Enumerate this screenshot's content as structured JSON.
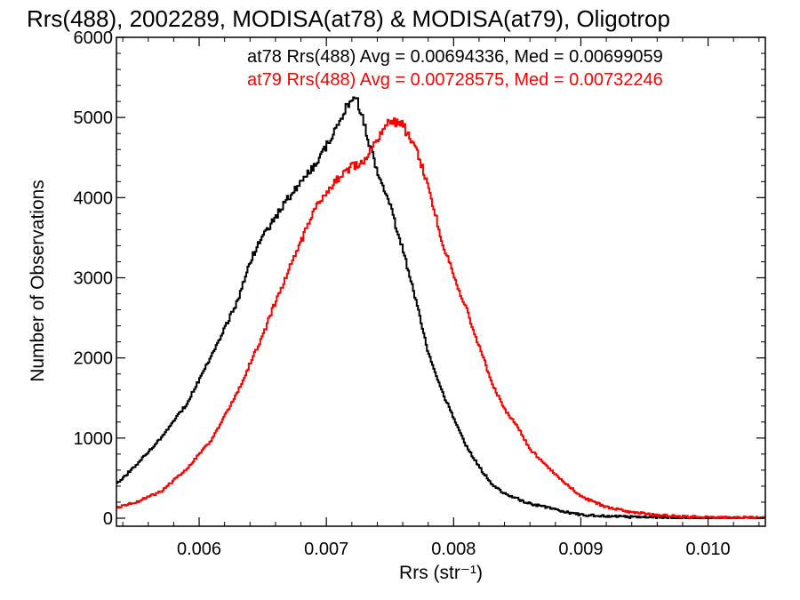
{
  "chart_data": {
    "type": "line",
    "title": "Rrs(488), 2002289, MODISA(at78) & MODISA(at79), Oligotrop",
    "xlabel": "Rrs (str⁻¹)",
    "ylabel": "Number of Observations",
    "xlim": [
      0.00535,
      0.01045
    ],
    "ylim": [
      -100,
      6000
    ],
    "xticks": [
      0.006,
      0.007,
      0.008,
      0.009,
      0.01
    ],
    "xtick_labels": [
      "0.006",
      "0.007",
      "0.008",
      "0.009",
      "0.010"
    ],
    "yticks": [
      0,
      1000,
      2000,
      3000,
      4000,
      5000,
      6000
    ],
    "ytick_labels": [
      "0",
      "1000",
      "2000",
      "3000",
      "4000",
      "5000",
      "6000"
    ],
    "grid": false,
    "legend_position": "top-right",
    "series": [
      {
        "name": "at78 Rrs(488) Avg = 0.00694336, Med = 0.00699059",
        "color": "#000000",
        "x": [
          0.00535,
          0.0055,
          0.0057,
          0.0059,
          0.0061,
          0.0063,
          0.0064,
          0.0065,
          0.0066,
          0.0067,
          0.0068,
          0.0069,
          0.007,
          0.0071,
          0.00715,
          0.0072,
          0.00725,
          0.0073,
          0.0074,
          0.0075,
          0.0076,
          0.0077,
          0.0078,
          0.0079,
          0.008,
          0.0081,
          0.0082,
          0.0083,
          0.0084,
          0.0086,
          0.0088,
          0.009,
          0.0092,
          0.0094,
          0.0096,
          0.0098,
          0.01,
          0.01045
        ],
        "y": [
          430,
          650,
          1000,
          1420,
          2030,
          2700,
          3200,
          3520,
          3760,
          3990,
          4200,
          4400,
          4650,
          4950,
          5120,
          5230,
          5180,
          4900,
          4320,
          3900,
          3350,
          2750,
          2080,
          1620,
          1250,
          900,
          640,
          430,
          310,
          180,
          110,
          40,
          25,
          15,
          8,
          5,
          3,
          2
        ]
      },
      {
        "name": "at79 Rrs(488) Avg = 0.00728575, Med = 0.00732246",
        "color": "#ff0000",
        "x": [
          0.00535,
          0.0055,
          0.0057,
          0.0059,
          0.0061,
          0.0063,
          0.0065,
          0.0066,
          0.0067,
          0.0068,
          0.0069,
          0.007,
          0.0071,
          0.0072,
          0.0073,
          0.0074,
          0.0075,
          0.0076,
          0.0077,
          0.0078,
          0.0079,
          0.008,
          0.0081,
          0.0082,
          0.0083,
          0.0084,
          0.0085,
          0.0086,
          0.0088,
          0.009,
          0.0092,
          0.0094,
          0.0096,
          0.0098,
          0.01,
          0.01045
        ],
        "y": [
          130,
          200,
          330,
          610,
          980,
          1570,
          2280,
          2700,
          3080,
          3450,
          3820,
          4080,
          4250,
          4380,
          4440,
          4720,
          4950,
          4900,
          4630,
          4150,
          3510,
          3020,
          2620,
          2150,
          1700,
          1360,
          1150,
          860,
          550,
          270,
          140,
          75,
          40,
          20,
          10,
          5
        ]
      }
    ]
  }
}
